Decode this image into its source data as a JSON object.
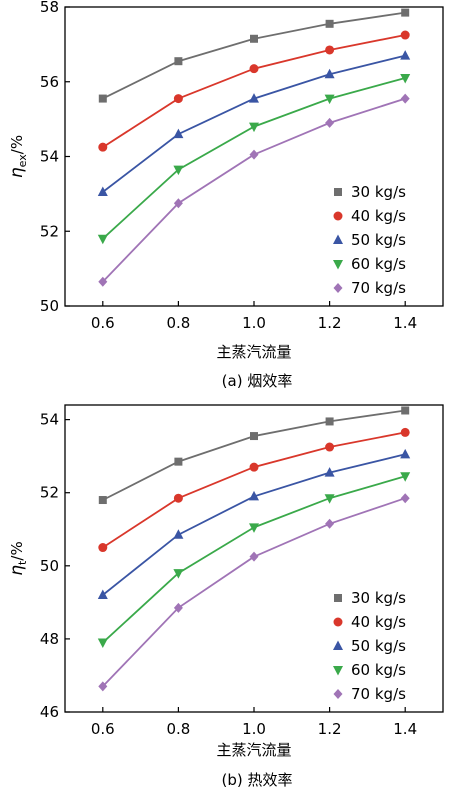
{
  "chart_data": [
    {
      "type": "line",
      "caption": "(a) 烟效率",
      "xlabel": "主蒸汽流量",
      "ylabel_symbol": "η",
      "ylabel_sub": "ex",
      "ylabel_unit": "/%",
      "x": [
        0.6,
        0.8,
        1.0,
        1.2,
        1.4
      ],
      "x_tick_labels": [
        "0.6",
        "0.8",
        "1.0",
        "1.2",
        "1.4"
      ],
      "xlim": [
        0.5,
        1.5
      ],
      "ylim": [
        50,
        58
      ],
      "y_ticks": [
        50,
        52,
        54,
        56,
        58
      ],
      "y_tick_labels": [
        "50",
        "52",
        "54",
        "56",
        "58"
      ],
      "legend_position": "bottom-right",
      "series": [
        {
          "name": "30 kg/s",
          "marker": "square",
          "color": "#6e6e6e",
          "values": [
            55.55,
            56.55,
            57.15,
            57.55,
            57.85
          ]
        },
        {
          "name": "40 kg/s",
          "marker": "circle",
          "color": "#d9372b",
          "values": [
            54.25,
            55.55,
            56.35,
            56.85,
            57.25
          ]
        },
        {
          "name": "50 kg/s",
          "marker": "triangle-up",
          "color": "#3a55a4",
          "values": [
            53.05,
            54.6,
            55.55,
            56.2,
            56.7
          ]
        },
        {
          "name": "60 kg/s",
          "marker": "triangle-down",
          "color": "#3aa94a",
          "values": [
            51.8,
            53.65,
            54.8,
            55.55,
            56.1
          ]
        },
        {
          "name": "70 kg/s",
          "marker": "diamond",
          "color": "#a074b6",
          "values": [
            50.65,
            52.75,
            54.05,
            54.9,
            55.55
          ]
        }
      ]
    },
    {
      "type": "line",
      "caption": "(b) 热效率",
      "xlabel": "主蒸汽流量",
      "ylabel_symbol": "η",
      "ylabel_sub": "t",
      "ylabel_unit": "/%",
      "x": [
        0.6,
        0.8,
        1.0,
        1.2,
        1.4
      ],
      "x_tick_labels": [
        "0.6",
        "0.8",
        "1.0",
        "1.2",
        "1.4"
      ],
      "xlim": [
        0.5,
        1.5
      ],
      "ylim": [
        46,
        54.4
      ],
      "y_ticks": [
        46,
        48,
        50,
        52,
        54
      ],
      "y_tick_labels": [
        "46",
        "48",
        "50",
        "52",
        "54"
      ],
      "legend_position": "bottom-right",
      "series": [
        {
          "name": "30 kg/s",
          "marker": "square",
          "color": "#6e6e6e",
          "values": [
            51.8,
            52.85,
            53.55,
            53.95,
            54.25
          ]
        },
        {
          "name": "40 kg/s",
          "marker": "circle",
          "color": "#d9372b",
          "values": [
            50.5,
            51.85,
            52.7,
            53.25,
            53.65
          ]
        },
        {
          "name": "50 kg/s",
          "marker": "triangle-up",
          "color": "#3a55a4",
          "values": [
            49.2,
            50.85,
            51.9,
            52.55,
            53.05
          ]
        },
        {
          "name": "60 kg/s",
          "marker": "triangle-down",
          "color": "#3aa94a",
          "values": [
            47.9,
            49.8,
            51.05,
            51.85,
            52.45
          ]
        },
        {
          "name": "70 kg/s",
          "marker": "diamond",
          "color": "#a074b6",
          "values": [
            46.7,
            48.85,
            50.25,
            51.15,
            51.85
          ]
        }
      ]
    }
  ]
}
